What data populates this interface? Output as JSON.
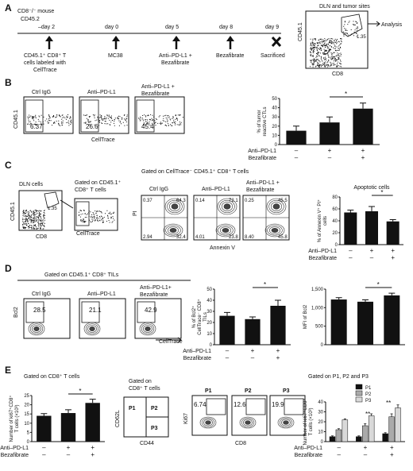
{
  "panels": {
    "A": {
      "label": "A",
      "mouse": "CD8⁻/⁻ mouse",
      "strain": "CD45.2",
      "timeline": [
        {
          "day": "–day 2",
          "event": "CD45.1⁺ CD8⁺ T cells labeled with CellTrace",
          "marker": "arrow"
        },
        {
          "day": "day 0",
          "event": "MC38",
          "marker": "arrow"
        },
        {
          "day": "day 5",
          "event": "Anti–PD-L1 + Bezafibrate",
          "marker": "arrow"
        },
        {
          "day": "day 8",
          "event": "Bezafibrate",
          "marker": "arrow"
        },
        {
          "day": "day 9",
          "event": "Sacrificed",
          "marker": "cross"
        }
      ],
      "flow_title": "DLN and tumor sites",
      "flow_y": "CD45.1",
      "flow_x": "CD8",
      "flow_pct": "1.35",
      "analysis": "Analysis"
    },
    "B": {
      "label": "B",
      "groups": [
        "Ctrl IgG",
        "Anti–PD-L1",
        "Anti–PD-L1 + Bezafibrate"
      ],
      "flow_y": "CD45.1",
      "flow_x": "CellTrace",
      "flow_pct": [
        "6.37",
        "26.6",
        "45.4"
      ]
    },
    "C": {
      "label": "C",
      "dln": "DLN cells",
      "gated1": "Gated on CD45.1⁺ CD8⁺ T cells",
      "gated2": "Gated on CellTrace⁻ CD45.1⁺ CD8⁺ T cells",
      "dln_pct": "1.35",
      "dln_y": "CD45.1",
      "dln_x": "CD8",
      "ct_x": "CellTrace",
      "groups": [
        "Ctrl IgG",
        "Anti–PD-L1",
        "Anti–PD-L1 + Bezafibrate"
      ],
      "pi_y": "PI",
      "annexin_x": "Annexin V",
      "quadrants": [
        [
          "0.37",
          "64.3",
          "2.94",
          "32.4"
        ],
        [
          "0.14",
          "72.1",
          "4.01",
          "23.8"
        ],
        [
          "0.25",
          "45.5",
          "8.40",
          "45.8"
        ]
      ],
      "apoptotic_title": "Apoptotic cells"
    },
    "D": {
      "label": "D",
      "gated": "Gated on CD45.1⁺ CD8⁺ TILs",
      "groups": [
        "Ctrl IgG",
        "Anti–PD-L1",
        "Anti–PD-L1+ Bezafibrate"
      ],
      "flow_y": "Bcl2",
      "flow_x": "CellTrace",
      "flow_pct": [
        "28.5",
        "21.1",
        "42.9"
      ]
    },
    "E": {
      "label": "E",
      "gated_left": "Gated on CD8⁺ T cells",
      "gated_mid": "Gated on CD8⁺ T cells",
      "gated_right": "Gated on P1, P2 and P3",
      "quad": [
        "P1",
        "P2",
        "P3"
      ],
      "quad_y": "CD62L",
      "quad_x": "CD44",
      "ki_y": "Ki67",
      "ki_x": "CD8",
      "ki_groups": [
        "P1",
        "P2",
        "P3"
      ],
      "ki_pct": [
        "6.74",
        "12.6",
        "19.9"
      ]
    }
  },
  "treatment_rows": {
    "anti_label": "Anti–PD-L1",
    "beza_label": "Bezafibrate",
    "anti": [
      "–",
      "+",
      "+"
    ],
    "beza": [
      "–",
      "–",
      "+"
    ]
  },
  "significance": "*",
  "significance2": "**",
  "colors": {
    "bar": "#111111",
    "p1": "#111111",
    "p2": "#aaaaaa",
    "p3": "#d9d9d9"
  },
  "chart_data": [
    {
      "id": "B",
      "type": "bar",
      "categories": [
        "Ctrl IgG",
        "Anti–PD-L1",
        "Anti–PD-L1 + Bezafibrate"
      ],
      "values": [
        15,
        24,
        39
      ],
      "errors": [
        5,
        6,
        6
      ],
      "ylim": [
        0,
        50
      ],
      "yticks": [
        0,
        10,
        20,
        30,
        40,
        50
      ],
      "ylabel": "% of tumor reactive CTLs"
    },
    {
      "id": "C",
      "type": "bar",
      "categories": [
        "Ctrl IgG",
        "Anti–PD-L1",
        "Anti–PD-L1 + Bezafibrate"
      ],
      "values": [
        54,
        56,
        39
      ],
      "errors": [
        4,
        8,
        3
      ],
      "ylim": [
        0,
        80
      ],
      "yticks": [
        0,
        20,
        40,
        60,
        80
      ],
      "title": "Apoptotic cells",
      "ylabel": "% of Annexin V⁺ PI⁺ cells"
    },
    {
      "id": "D1",
      "type": "bar",
      "categories": [
        "Ctrl IgG",
        "Anti–PD-L1",
        "Anti–PD-L1 + Bezafibrate"
      ],
      "values": [
        26,
        23,
        35
      ],
      "errors": [
        3,
        2,
        5
      ],
      "ylim": [
        0,
        50
      ],
      "yticks": [
        0,
        10,
        20,
        30,
        40,
        50
      ],
      "ylabel": "% of Bcl2⁺ CellTrace⁻ CD8⁺ TILs"
    },
    {
      "id": "D2",
      "type": "bar",
      "categories": [
        "Ctrl IgG",
        "Anti–PD-L1",
        "Anti–PD-L1 + Bezafibrate"
      ],
      "values": [
        1220,
        1160,
        1330
      ],
      "errors": [
        50,
        50,
        60
      ],
      "ylim": [
        0,
        1500
      ],
      "yticks": [
        0,
        500,
        1000,
        1500
      ],
      "ylabel": "MFI of Bcl2",
      "tick_labels": [
        "0",
        "500",
        "1,000",
        "1,500"
      ]
    },
    {
      "id": "E1",
      "type": "bar",
      "categories": [
        "Ctrl IgG",
        "Anti–PD-L1",
        "Anti–PD-L1 + Bezafibrate"
      ],
      "values": [
        14,
        15.5,
        21
      ],
      "errors": [
        1.2,
        1.8,
        2
      ],
      "ylim": [
        0,
        25
      ],
      "yticks": [
        0,
        5,
        10,
        15,
        20,
        25
      ],
      "ylabel": "Number of ki67⁺ CD8⁺ T cells (×10³)"
    },
    {
      "id": "E2",
      "type": "bar",
      "categories": [
        "Ctrl IgG",
        "Anti–PD-L1",
        "Anti–PD-L1 + Bezafibrate"
      ],
      "series": [
        {
          "name": "P1",
          "values": [
            5,
            5,
            8
          ],
          "errors": [
            0.8,
            0.8,
            1
          ]
        },
        {
          "name": "P2",
          "values": [
            12,
            16,
            25
          ],
          "errors": [
            1,
            2,
            3
          ]
        },
        {
          "name": "P3",
          "values": [
            22,
            26,
            34
          ],
          "errors": [
            1,
            2,
            3
          ]
        }
      ],
      "ylim": [
        0,
        40
      ],
      "yticks": [
        0,
        10,
        20,
        30,
        40
      ],
      "ylabel": "Number of ki67⁺ CD8⁺ T cells (×10³)"
    }
  ]
}
